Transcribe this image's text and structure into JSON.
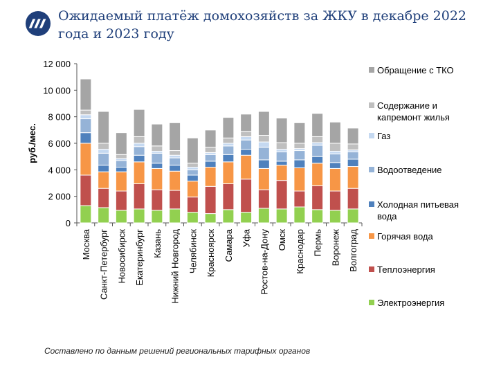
{
  "header": {
    "title": "Ожидаемый платёж домохозяйств за ЖКУ в декабре 2022 года и 2023 году",
    "logo_icon": "organization-logo-icon"
  },
  "footer": {
    "source": "Составлено по данным решений региональных тарифных органов"
  },
  "chart_data": {
    "type": "bar",
    "stacked": true,
    "title": "",
    "xlabel": "",
    "ylabel": "руб./мес.",
    "ylim": [
      0,
      12000
    ],
    "yticks": [
      0,
      2000,
      4000,
      6000,
      8000,
      10000,
      12000
    ],
    "ytick_labels": [
      "0",
      "2 000",
      "4 000",
      "6 000",
      "8 000",
      "10 000",
      "12 000"
    ],
    "grid": false,
    "legend_position": "right",
    "bars_per_category": 2,
    "categories": [
      "Москва",
      "Санкт-Петербург",
      "Новосибирск",
      "Екатеринбург",
      "Казань",
      "Нижний Новгород",
      "Челябинск",
      "Красноярск",
      "Самара",
      "Уфа",
      "Ростов-на-Дону",
      "Омск",
      "Краснодар",
      "Пермь",
      "Воронеж",
      "Волгоград"
    ],
    "series": [
      {
        "name": "Электроэнергия",
        "color": "#92d050",
        "values": [
          1300,
          1150,
          950,
          1050,
          950,
          1050,
          800,
          700,
          1000,
          800,
          1100,
          1050,
          1200,
          1000,
          950,
          1050
        ]
      },
      {
        "name": "Теплоэнергия",
        "color": "#c0504d",
        "values": [
          2300,
          1450,
          1450,
          1900,
          1550,
          1400,
          1150,
          2050,
          1950,
          2500,
          1400,
          2150,
          1200,
          1800,
          1450,
          1550
        ]
      },
      {
        "name": "Горячая вода",
        "color": "#f79646",
        "values": [
          2400,
          1250,
          1450,
          1650,
          1600,
          1450,
          1200,
          1450,
          1650,
          1800,
          1600,
          1150,
          1750,
          1700,
          1700,
          1650
        ]
      },
      {
        "name": "Холодная питьевая вода",
        "color": "#4f81bd",
        "values": [
          800,
          500,
          350,
          500,
          400,
          450,
          450,
          450,
          550,
          450,
          650,
          300,
          600,
          500,
          450,
          550
        ]
      },
      {
        "name": "Водоотведение",
        "color": "#95b3d7",
        "values": [
          1050,
          900,
          500,
          650,
          750,
          550,
          400,
          500,
          650,
          700,
          950,
          700,
          700,
          850,
          650,
          550
        ]
      },
      {
        "name": "Газ",
        "color": "#c5d9f1",
        "values": [
          300,
          300,
          150,
          250,
          150,
          200,
          200,
          150,
          200,
          250,
          400,
          200,
          150,
          200,
          200,
          150
        ]
      },
      {
        "name": "Содержание и капремонт жилья",
        "color": "#bfbfbf",
        "values": [
          350,
          450,
          300,
          500,
          400,
          350,
          300,
          400,
          400,
          400,
          500,
          500,
          400,
          450,
          600,
          450
        ]
      },
      {
        "name": "Обращение с ТКО",
        "color": "#a5a5a5",
        "values": [
          2350,
          2400,
          1650,
          2050,
          1650,
          2100,
          1900,
          1300,
          1550,
          1300,
          1800,
          1850,
          1550,
          1750,
          1600,
          1200
        ]
      }
    ]
  }
}
